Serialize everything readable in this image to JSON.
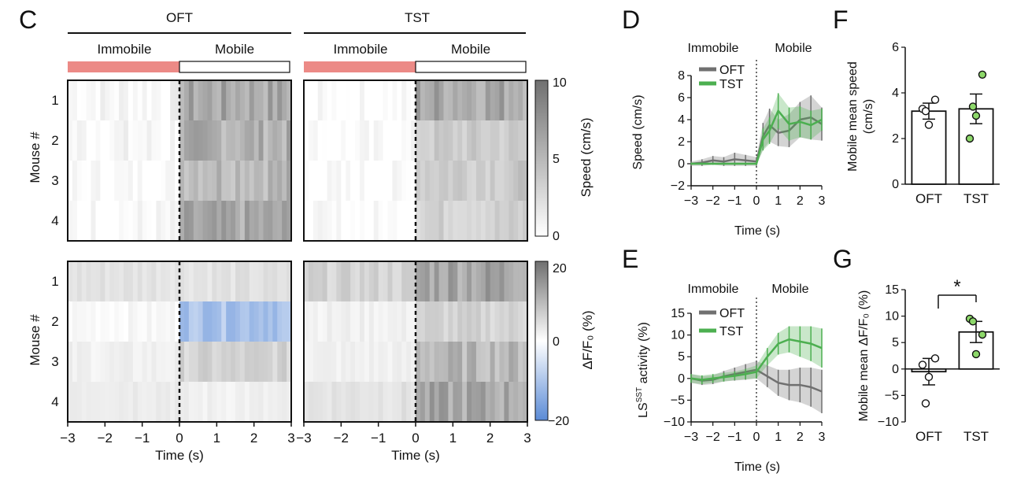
{
  "panel_letters": {
    "c": "C",
    "d": "D",
    "e": "E",
    "f": "F",
    "g": "G"
  },
  "labels": {
    "oft": "OFT",
    "tst": "TST",
    "immobile": "Immobile",
    "mobile": "Mobile",
    "mouse_axis": "Mouse #",
    "time_axis": "Time (s)",
    "speed_cbar": "Speed (cm/s)",
    "dff_cbar": "ΔF/F₀ (%)",
    "speed_axis": "Speed (cm/s)",
    "ls_axis_main": "LS",
    "ls_axis_sup": "SST",
    "ls_axis_rest": " activity (%)",
    "mobile_speed_1": "Mobile mean speed",
    "mobile_speed_2": "(cm/s)",
    "mobile_dff": "Mobile mean ΔF/F₀ (%)",
    "sig_star": "*"
  },
  "colors": {
    "immobile_bar": "#ec8a86",
    "oft": "#707070",
    "tst": "#4caf50",
    "tst_point": "#8dd86a",
    "cmap_neg": "#5b8bd6",
    "cmap_pos": "#707070"
  },
  "chart_data": [
    {
      "panel": "C",
      "type": "heatmap",
      "description_keys": "speed heatmaps for OFT and TST, mice 1-4",
      "rows": [
        "1",
        "2",
        "3",
        "4"
      ],
      "x_ticks": [
        "−3",
        "−2",
        "−1",
        "0",
        "1",
        "2",
        "3"
      ],
      "xlim": [
        -3,
        3
      ],
      "speed_colorbar": {
        "ticks": [
          "10",
          "5",
          "0"
        ],
        "range": [
          0,
          10
        ]
      },
      "dff_colorbar": {
        "ticks": [
          "20",
          "0",
          "−20"
        ],
        "range": [
          -20,
          20
        ]
      },
      "speed": {
        "OFT": {
          "immobile_mean": [
            0.6,
            0.5,
            0.1,
            0.3
          ],
          "mobile_mean": [
            6.0,
            5.5,
            5.2,
            5.8
          ]
        },
        "TST": {
          "immobile_mean": [
            0.0,
            0.0,
            0.0,
            0.0
          ],
          "mobile_mean": [
            6.2,
            3.5,
            3.8,
            3.2
          ]
        }
      },
      "dff": {
        "OFT": {
          "immobile_mean": [
            4,
            1,
            2,
            3
          ],
          "mobile_mean": [
            4,
            -10,
            6,
            2
          ]
        },
        "TST": {
          "immobile_mean": [
            6,
            2,
            2,
            4
          ],
          "mobile_mean": [
            13,
            6,
            10,
            12
          ]
        }
      }
    },
    {
      "panel": "D",
      "type": "line",
      "xlabel": "Time (s)",
      "ylabel": "Speed (cm/s)",
      "xlim": [
        -3,
        3
      ],
      "ylim": [
        -2,
        8
      ],
      "x_ticks": [
        "−3",
        "−2",
        "−1",
        "0",
        "1",
        "2",
        "3"
      ],
      "y_ticks": [
        "−2",
        "0",
        "2",
        "4",
        "6",
        "8"
      ],
      "legend": "top-left",
      "series": [
        {
          "name": "OFT",
          "x": [
            -3,
            -2.5,
            -2,
            -1.5,
            -1,
            -0.5,
            0,
            0.3,
            0.6,
            1,
            1.5,
            2,
            2.5,
            3
          ],
          "y": [
            0,
            0.1,
            0.3,
            0.2,
            0.4,
            0.3,
            0.2,
            2.5,
            3.5,
            2.8,
            3.0,
            4.0,
            4.2,
            3.6
          ],
          "err": [
            0.2,
            0.3,
            0.4,
            0.4,
            0.6,
            0.5,
            0.4,
            1.2,
            1.5,
            1.2,
            1.5,
            1.6,
            2.0,
            1.5
          ]
        },
        {
          "name": "TST",
          "x": [
            -3,
            -2.5,
            -2,
            -1.5,
            -1,
            -0.5,
            0,
            0.3,
            0.6,
            1,
            1.5,
            2,
            2.5,
            3
          ],
          "y": [
            0,
            0,
            0,
            0,
            0,
            0,
            0,
            2.2,
            3.0,
            4.8,
            3.6,
            3.8,
            3.5,
            4.0
          ],
          "err": [
            0.1,
            0.1,
            0.1,
            0.1,
            0.1,
            0.1,
            0.1,
            1.0,
            1.2,
            1.6,
            1.5,
            1.4,
            1.3,
            1.0
          ]
        }
      ],
      "regions": [
        "Immobile",
        "Mobile"
      ]
    },
    {
      "panel": "E",
      "type": "line",
      "xlabel": "Time (s)",
      "ylabel": "LSSST activity (%)",
      "xlim": [
        -3,
        3
      ],
      "ylim": [
        -10,
        15
      ],
      "x_ticks": [
        "−3",
        "−2",
        "−1",
        "0",
        "1",
        "2",
        "3"
      ],
      "y_ticks": [
        "−10",
        "−5",
        "0",
        "5",
        "10",
        "15"
      ],
      "legend": "top-left",
      "series": [
        {
          "name": "OFT",
          "x": [
            -3,
            -2.5,
            -2,
            -1.5,
            -1,
            -0.5,
            0,
            0.5,
            1,
            1.5,
            2,
            2.5,
            3
          ],
          "y": [
            0,
            -0.5,
            -0.3,
            0.5,
            1.0,
            1.5,
            2.0,
            0.5,
            -1.0,
            -1.5,
            -1.5,
            -2.0,
            -3.0
          ],
          "err": [
            1.0,
            1.0,
            1.0,
            1.2,
            1.5,
            1.8,
            2.0,
            2.5,
            3.0,
            3.5,
            4.0,
            4.5,
            5.0
          ]
        },
        {
          "name": "TST",
          "x": [
            -3,
            -2.5,
            -2,
            -1.5,
            -1,
            -0.5,
            0,
            0.5,
            1,
            1.5,
            2,
            2.5,
            3
          ],
          "y": [
            0,
            -0.3,
            0,
            0.3,
            0.6,
            1.0,
            1.5,
            5.0,
            8.0,
            9.0,
            8.5,
            8.0,
            7.0
          ],
          "err": [
            1.0,
            1.0,
            1.0,
            1.0,
            1.0,
            1.2,
            1.5,
            2.0,
            2.5,
            3.0,
            3.5,
            4.0,
            4.5
          ]
        }
      ],
      "regions": [
        "Immobile",
        "Mobile"
      ]
    },
    {
      "panel": "F",
      "type": "bar",
      "categories": [
        "OFT",
        "TST"
      ],
      "values": [
        3.2,
        3.3
      ],
      "sem": [
        0.35,
        0.65
      ],
      "points": [
        [
          3.3,
          3.7,
          2.6,
          3.2
        ],
        [
          2.0,
          4.8,
          3.0,
          3.4
        ]
      ],
      "ylabel": "Mobile mean speed (cm/s)",
      "ylim": [
        0,
        6
      ],
      "y_ticks": [
        "0",
        "2",
        "4",
        "6"
      ]
    },
    {
      "panel": "G",
      "type": "bar",
      "categories": [
        "OFT",
        "TST"
      ],
      "values": [
        -0.5,
        7.0
      ],
      "sem": [
        2.5,
        2.0
      ],
      "points": [
        [
          0.8,
          2.0,
          -1.5,
          -6.5
        ],
        [
          9.5,
          6.5,
          2.8,
          9.0
        ]
      ],
      "ylabel": "Mobile mean ΔF/F₀ (%)",
      "ylim": [
        -10,
        15
      ],
      "y_ticks": [
        "−10",
        "−5",
        "0",
        "5",
        "10",
        "15"
      ],
      "significance": "*"
    }
  ]
}
